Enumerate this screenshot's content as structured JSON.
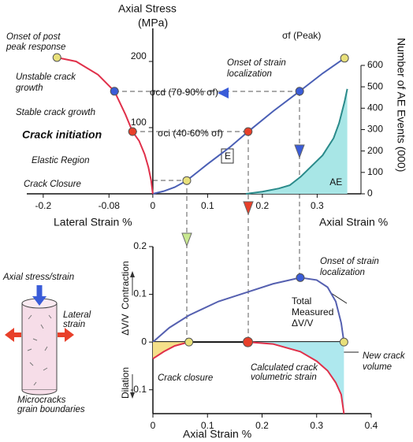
{
  "chart_data": [
    {
      "type": "line",
      "title": "Axial Stress",
      "subtitle": "(MPa)",
      "x_label_left": "Lateral Strain %",
      "x_label_right": "Axial Strain %",
      "y2_label": "Number of AE Events (000)",
      "xlim": [
        -0.23,
        0.38
      ],
      "xticks": [
        -0.2,
        -0.08,
        0,
        0.1,
        0.2,
        0.3
      ],
      "ylim": [
        0,
        250
      ],
      "yticks": [
        100,
        200
      ],
      "y2lim": [
        0,
        773
      ],
      "y2ticks": [
        0,
        100,
        200,
        300,
        400,
        500,
        600
      ],
      "series": [
        {
          "color": "#4a5fb5",
          "x": [
            0,
            0.02,
            0.04,
            0.062,
            0.1,
            0.14,
            0.174,
            0.22,
            0.268,
            0.31,
            0.35
          ],
          "values": [
            0,
            4,
            10,
            20,
            45,
            70,
            94,
            125,
            155,
            182,
            205
          ]
        },
        {
          "color": "#e0304a",
          "x": [
            0,
            -0.003,
            -0.008,
            -0.015,
            -0.025,
            -0.037,
            -0.05,
            -0.07,
            -0.1,
            -0.14,
            -0.175
          ],
          "values": [
            0,
            20,
            40,
            60,
            80,
            94,
            120,
            155,
            180,
            200,
            206
          ]
        },
        {
          "name": "AE",
          "color": "#2a8a8a",
          "fill": "#a8e6e6",
          "axis": "y2",
          "x": [
            0.17,
            0.2,
            0.23,
            0.25,
            0.27,
            0.29,
            0.31,
            0.33,
            0.34,
            0.35,
            0.355
          ],
          "values": [
            0,
            10,
            25,
            40,
            80,
            130,
            180,
            260,
            330,
            430,
            490
          ]
        }
      ],
      "points": [
        {
          "x": 0.062,
          "y": 20,
          "color": "#e8e07a"
        },
        {
          "x": 0.174,
          "y": 94,
          "color": "#e8402a"
        },
        {
          "x": -0.037,
          "y": 94,
          "color": "#e8402a"
        },
        {
          "x": 0.268,
          "y": 155,
          "color": "#3a5cd8"
        },
        {
          "x": -0.07,
          "y": 155,
          "color": "#3a5cd8"
        },
        {
          "x": 0.35,
          "y": 205,
          "color": "#e8e07a"
        },
        {
          "x": -0.175,
          "y": 206,
          "color": "#e8e07a"
        }
      ],
      "annotations": [
        "Onset of post",
        "peak response",
        "Unstable crack",
        "growth",
        "Stable crack growth",
        "Crack initiation",
        "Elastic Region",
        "Crack Closure",
        "σf (Peak)",
        "Onset of strain",
        "localization",
        "σcd (70-90% σf)",
        "σci (40-60% σf)",
        "E"
      ]
    },
    {
      "type": "line",
      "x_label": "Axial Strain %",
      "y_label": "ΔV/V",
      "xlim": [
        0,
        0.4
      ],
      "xticks": [
        0,
        0.1,
        0.2,
        0.3,
        0.4
      ],
      "ylim": [
        -0.15,
        0.2
      ],
      "yticks": [
        -0.1,
        0,
        0.1,
        0.2
      ],
      "series": [
        {
          "color": "#5560b0",
          "x": [
            0,
            0.03,
            0.066,
            0.12,
            0.174,
            0.22,
            0.27,
            0.3,
            0.32,
            0.335,
            0.345,
            0.35
          ],
          "values": [
            0,
            0.03,
            0.056,
            0.085,
            0.105,
            0.122,
            0.135,
            0.13,
            0.115,
            0.085,
            0.04,
            0
          ]
        },
        {
          "color": "#e0304a",
          "fill": "#f5e08a",
          "x": [
            0,
            0.02,
            0.04,
            0.066
          ],
          "values": [
            -0.035,
            -0.02,
            -0.008,
            0
          ]
        },
        {
          "color": "#e0304a",
          "fill": "#aee8ee",
          "x": [
            0.174,
            0.22,
            0.27,
            0.3,
            0.32,
            0.335,
            0.345,
            0.35
          ],
          "values": [
            0,
            -0.004,
            -0.02,
            -0.04,
            -0.06,
            -0.085,
            -0.11,
            -0.15
          ]
        }
      ],
      "points": [
        {
          "x": 0.066,
          "y": 0,
          "color": "#e8e07a"
        },
        {
          "x": 0.174,
          "y": 0,
          "color": "#e8402a"
        },
        {
          "x": 0.27,
          "y": 0.135,
          "color": "#3a5cd8"
        },
        {
          "x": 0.35,
          "y": 0,
          "color": "#e8e07a"
        }
      ],
      "annotations": [
        "Onset of strain",
        "localization",
        "Total",
        "Measured",
        "ΔV/V",
        "Crack closure",
        "Calculated crack",
        "volumetric strain",
        "New crack",
        "volume",
        "Contraction",
        "Dilation"
      ]
    }
  ],
  "inset": {
    "labels": [
      "Axial stress/strain",
      "Lateral",
      "strain",
      "Microcracks",
      "grain boundaries"
    ]
  }
}
